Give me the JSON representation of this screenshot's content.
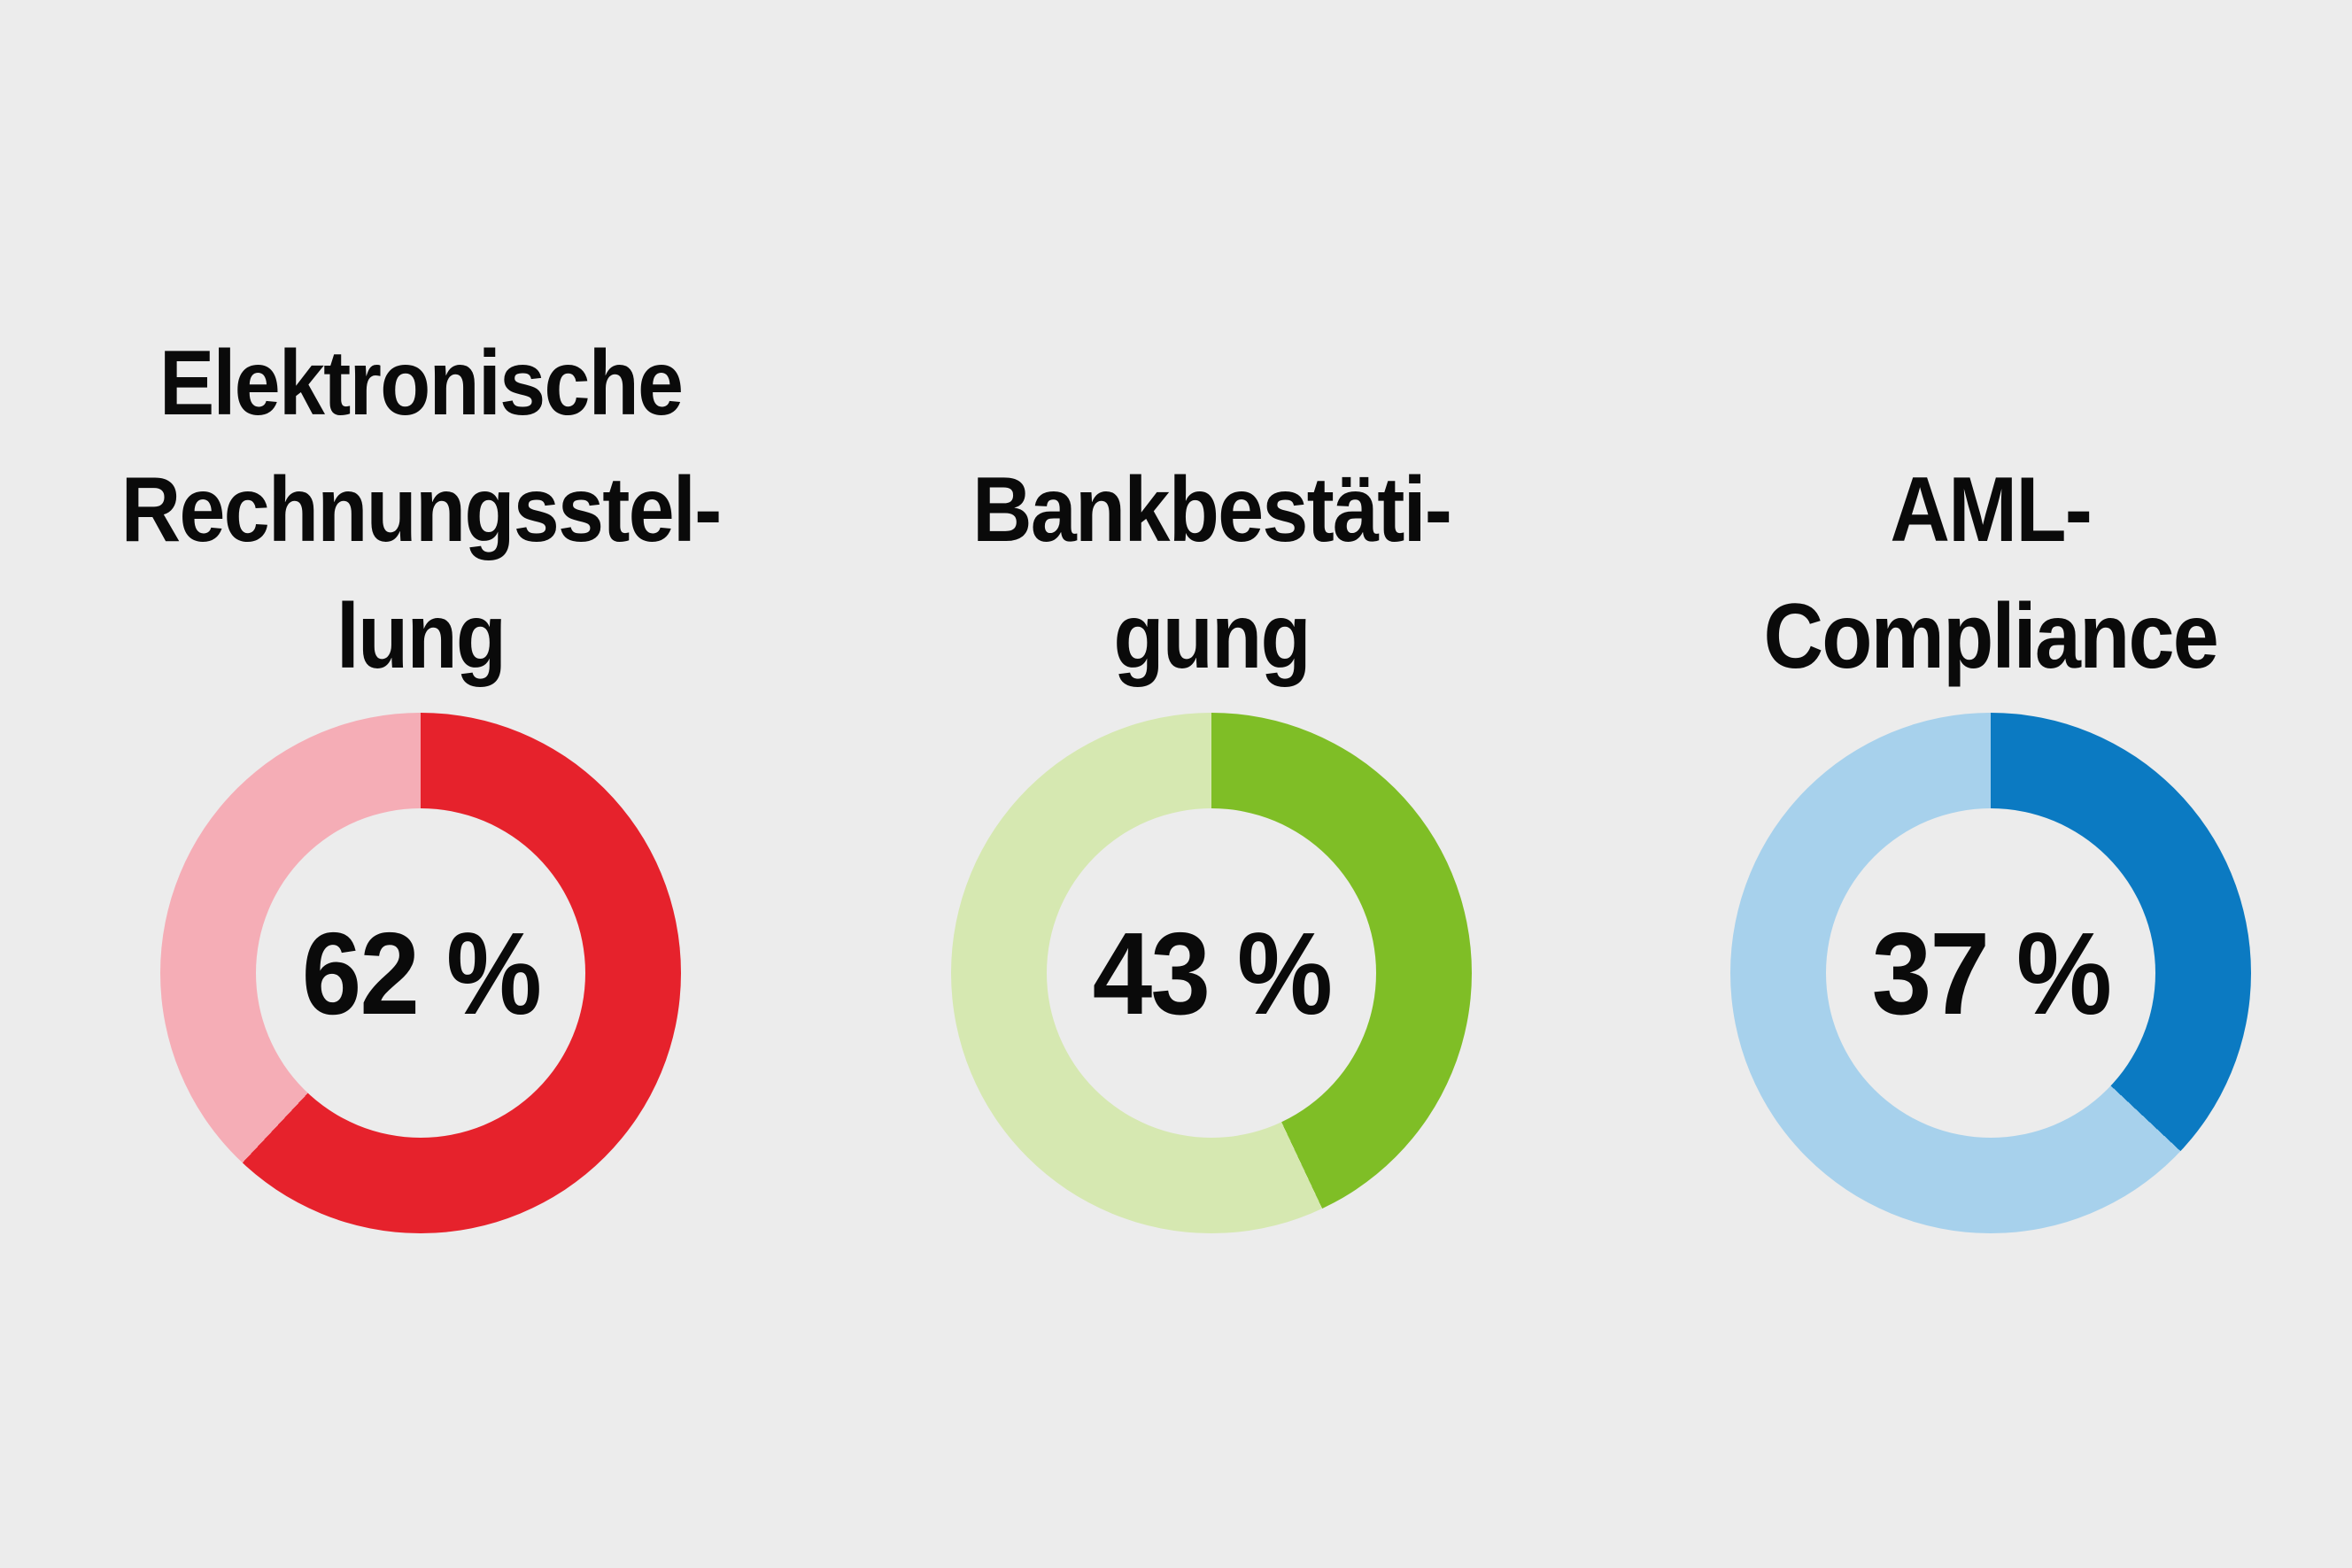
{
  "background": "#ececec",
  "text_color": "#0a0a0a",
  "charts": [
    {
      "title_lines": [
        "Elektronische",
        "Rechnungsstel-",
        "lung"
      ],
      "value_label": "62 %",
      "percent": 62,
      "color_dark": "#e6222c",
      "color_light": "#f5adb6"
    },
    {
      "title_lines": [
        "Bankbestäti-",
        "gung"
      ],
      "value_label": "43 %",
      "percent": 43,
      "color_dark": "#7fbe26",
      "color_light": "#d6e8b1"
    },
    {
      "title_lines": [
        "AML-",
        "Compliance"
      ],
      "value_label": "37 %",
      "percent": 37,
      "color_dark": "#0b7ac2",
      "color_light": "#a7d1ec"
    }
  ],
  "chart_data": [
    {
      "type": "pie",
      "donut": true,
      "title": "Elektronische Rechnungsstellung",
      "values": [
        62,
        38
      ],
      "unit": "%",
      "center_label": "62 %",
      "colors": [
        "#e6222c",
        "#f5adb6"
      ],
      "start_angle_deg": 0,
      "direction": "clockwise",
      "legend": "none"
    },
    {
      "type": "pie",
      "donut": true,
      "title": "Bankbestätigung",
      "values": [
        43,
        57
      ],
      "unit": "%",
      "center_label": "43 %",
      "colors": [
        "#7fbe26",
        "#d6e8b1"
      ],
      "start_angle_deg": 0,
      "direction": "clockwise",
      "legend": "none"
    },
    {
      "type": "pie",
      "donut": true,
      "title": "AML-Compliance",
      "values": [
        37,
        63
      ],
      "unit": "%",
      "center_label": "37 %",
      "colors": [
        "#0b7ac2",
        "#a7d1ec"
      ],
      "start_angle_deg": 0,
      "direction": "clockwise",
      "legend": "none"
    }
  ]
}
